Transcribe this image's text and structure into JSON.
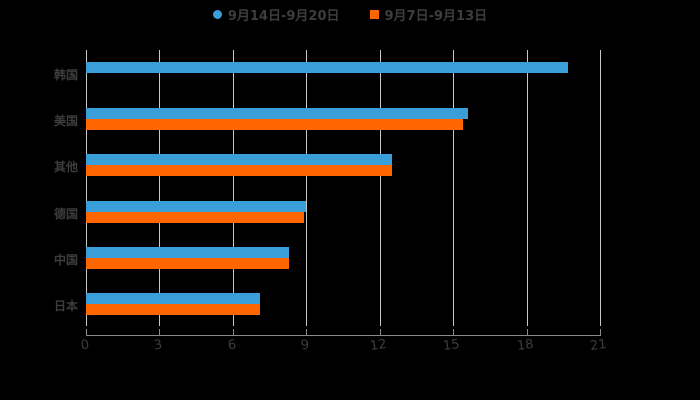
{
  "chart_data": {
    "type": "bar",
    "orientation": "horizontal",
    "title": "",
    "xlabel": "",
    "ylabel": "",
    "categories": [
      "韩国",
      "美国",
      "其他",
      "德国",
      "中国",
      "日本"
    ],
    "series": [
      {
        "name": "9月14日-9月20日",
        "color": "#3a9ed8",
        "values": [
          19.7,
          15.6,
          12.5,
          9.0,
          8.3,
          7.1
        ]
      },
      {
        "name": "9月7日-9月13日",
        "color": "#ff6600",
        "values": [
          null,
          15.4,
          12.5,
          8.9,
          8.3,
          7.1
        ]
      }
    ],
    "xlim": [
      0,
      21
    ],
    "xticks": [
      "0",
      "3",
      "6",
      "9",
      "12",
      "15",
      "18",
      "21"
    ],
    "grid": true,
    "legend_position": "top"
  },
  "legend": [
    {
      "label": "9月14日-9月20日",
      "color": "#3a9ed8",
      "shape": "circle"
    },
    {
      "label": "9月7日-9月13日",
      "color": "#ff6600",
      "shape": "square"
    }
  ]
}
